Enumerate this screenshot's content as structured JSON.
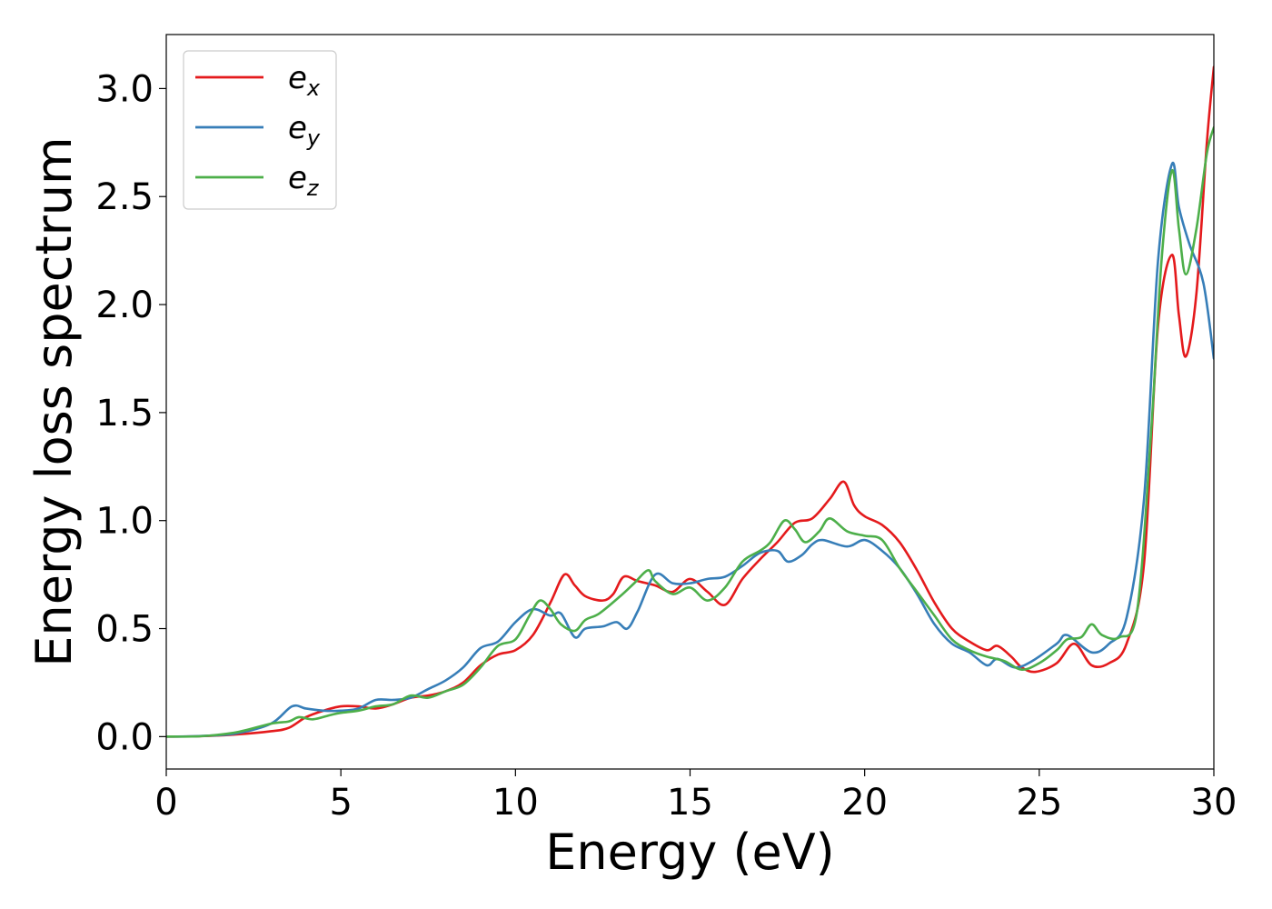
{
  "chart_data": {
    "type": "line",
    "title": "",
    "xlabel": "Energy (eV)",
    "ylabel": "Energy loss spectrum",
    "xlim": [
      0,
      30
    ],
    "ylim": [
      -0.15,
      3.25
    ],
    "xticks": [
      0,
      5,
      10,
      15,
      20,
      25,
      30
    ],
    "xtick_labels": [
      "0",
      "5",
      "10",
      "15",
      "20",
      "25",
      "30"
    ],
    "yticks": [
      0.0,
      0.5,
      1.0,
      1.5,
      2.0,
      2.5,
      3.0
    ],
    "ytick_labels": [
      "0.0",
      "0.5",
      "1.0",
      "1.5",
      "2.0",
      "2.5",
      "3.0"
    ],
    "grid": false,
    "legend_position": "top-left",
    "series": [
      {
        "name": "e_x",
        "label_base": "e",
        "label_sub": "x",
        "color": "#e41a1c",
        "points": [
          [
            0,
            0
          ],
          [
            1,
            0.002
          ],
          [
            2,
            0.01
          ],
          [
            3,
            0.025
          ],
          [
            3.5,
            0.04
          ],
          [
            4,
            0.09
          ],
          [
            4.5,
            0.12
          ],
          [
            5,
            0.14
          ],
          [
            5.5,
            0.14
          ],
          [
            6,
            0.13
          ],
          [
            6.5,
            0.15
          ],
          [
            7,
            0.18
          ],
          [
            7.5,
            0.19
          ],
          [
            8,
            0.21
          ],
          [
            8.5,
            0.25
          ],
          [
            9,
            0.33
          ],
          [
            9.5,
            0.38
          ],
          [
            10,
            0.4
          ],
          [
            10.5,
            0.47
          ],
          [
            11,
            0.62
          ],
          [
            11.4,
            0.75
          ],
          [
            11.7,
            0.7
          ],
          [
            12,
            0.65
          ],
          [
            12.5,
            0.63
          ],
          [
            12.8,
            0.66
          ],
          [
            13.1,
            0.74
          ],
          [
            13.5,
            0.72
          ],
          [
            14,
            0.7
          ],
          [
            14.5,
            0.67
          ],
          [
            15,
            0.73
          ],
          [
            15.5,
            0.67
          ],
          [
            16,
            0.61
          ],
          [
            16.5,
            0.73
          ],
          [
            17,
            0.82
          ],
          [
            17.5,
            0.9
          ],
          [
            18,
            0.99
          ],
          [
            18.5,
            1.01
          ],
          [
            19,
            1.1
          ],
          [
            19.4,
            1.18
          ],
          [
            19.7,
            1.07
          ],
          [
            20,
            1.02
          ],
          [
            20.5,
            0.98
          ],
          [
            21,
            0.9
          ],
          [
            21.5,
            0.77
          ],
          [
            22,
            0.62
          ],
          [
            22.5,
            0.5
          ],
          [
            23,
            0.44
          ],
          [
            23.5,
            0.4
          ],
          [
            23.8,
            0.42
          ],
          [
            24.2,
            0.37
          ],
          [
            24.5,
            0.32
          ],
          [
            24.9,
            0.3
          ],
          [
            25.5,
            0.34
          ],
          [
            26,
            0.43
          ],
          [
            26.5,
            0.33
          ],
          [
            27,
            0.34
          ],
          [
            27.5,
            0.43
          ],
          [
            28,
            0.8
          ],
          [
            28.4,
            1.9
          ],
          [
            28.8,
            2.23
          ],
          [
            29,
            1.95
          ],
          [
            29.2,
            1.76
          ],
          [
            29.5,
            2.05
          ],
          [
            29.8,
            2.75
          ],
          [
            30,
            3.1
          ]
        ]
      },
      {
        "name": "e_y",
        "label_base": "e",
        "label_sub": "y",
        "color": "#377eb8",
        "points": [
          [
            0,
            0
          ],
          [
            1,
            0.003
          ],
          [
            2,
            0.015
          ],
          [
            3,
            0.06
          ],
          [
            3.6,
            0.14
          ],
          [
            4,
            0.13
          ],
          [
            4.5,
            0.12
          ],
          [
            5,
            0.12
          ],
          [
            5.5,
            0.13
          ],
          [
            6,
            0.17
          ],
          [
            6.5,
            0.17
          ],
          [
            7,
            0.18
          ],
          [
            7.5,
            0.22
          ],
          [
            8,
            0.26
          ],
          [
            8.5,
            0.32
          ],
          [
            9,
            0.41
          ],
          [
            9.5,
            0.44
          ],
          [
            10,
            0.53
          ],
          [
            10.5,
            0.59
          ],
          [
            11,
            0.56
          ],
          [
            11.3,
            0.57
          ],
          [
            11.7,
            0.46
          ],
          [
            12,
            0.5
          ],
          [
            12.5,
            0.51
          ],
          [
            12.9,
            0.53
          ],
          [
            13.2,
            0.5
          ],
          [
            13.5,
            0.58
          ],
          [
            14,
            0.75
          ],
          [
            14.5,
            0.71
          ],
          [
            15,
            0.71
          ],
          [
            15.5,
            0.73
          ],
          [
            16,
            0.74
          ],
          [
            16.5,
            0.79
          ],
          [
            17,
            0.85
          ],
          [
            17.5,
            0.86
          ],
          [
            17.8,
            0.81
          ],
          [
            18.2,
            0.84
          ],
          [
            18.5,
            0.89
          ],
          [
            18.8,
            0.91
          ],
          [
            19.5,
            0.88
          ],
          [
            20,
            0.91
          ],
          [
            20.5,
            0.86
          ],
          [
            21,
            0.78
          ],
          [
            21.5,
            0.66
          ],
          [
            22,
            0.52
          ],
          [
            22.5,
            0.43
          ],
          [
            23,
            0.39
          ],
          [
            23.5,
            0.33
          ],
          [
            23.8,
            0.36
          ],
          [
            24.3,
            0.32
          ],
          [
            24.8,
            0.35
          ],
          [
            25.5,
            0.43
          ],
          [
            25.8,
            0.47
          ],
          [
            26.5,
            0.39
          ],
          [
            27,
            0.43
          ],
          [
            27.5,
            0.55
          ],
          [
            28,
            1.1
          ],
          [
            28.4,
            2.2
          ],
          [
            28.8,
            2.65
          ],
          [
            29,
            2.45
          ],
          [
            29.3,
            2.28
          ],
          [
            29.7,
            2.1
          ],
          [
            30,
            1.75
          ]
        ]
      },
      {
        "name": "e_z",
        "label_base": "e",
        "label_sub": "z",
        "color": "#4daf4a",
        "points": [
          [
            0,
            0
          ],
          [
            1,
            0.002
          ],
          [
            2,
            0.02
          ],
          [
            3,
            0.06
          ],
          [
            3.5,
            0.07
          ],
          [
            3.8,
            0.09
          ],
          [
            4.2,
            0.08
          ],
          [
            4.7,
            0.1
          ],
          [
            5,
            0.11
          ],
          [
            5.5,
            0.12
          ],
          [
            6,
            0.14
          ],
          [
            6.5,
            0.15
          ],
          [
            7,
            0.19
          ],
          [
            7.5,
            0.18
          ],
          [
            8,
            0.21
          ],
          [
            8.5,
            0.24
          ],
          [
            9,
            0.32
          ],
          [
            9.5,
            0.42
          ],
          [
            10,
            0.45
          ],
          [
            10.4,
            0.56
          ],
          [
            10.7,
            0.63
          ],
          [
            11,
            0.59
          ],
          [
            11.3,
            0.52
          ],
          [
            11.7,
            0.49
          ],
          [
            12,
            0.54
          ],
          [
            12.4,
            0.57
          ],
          [
            13,
            0.65
          ],
          [
            13.4,
            0.71
          ],
          [
            13.8,
            0.77
          ],
          [
            14,
            0.72
          ],
          [
            14.5,
            0.66
          ],
          [
            15,
            0.69
          ],
          [
            15.5,
            0.63
          ],
          [
            16,
            0.69
          ],
          [
            16.5,
            0.81
          ],
          [
            17,
            0.86
          ],
          [
            17.3,
            0.9
          ],
          [
            17.7,
            1.0
          ],
          [
            18,
            0.96
          ],
          [
            18.3,
            0.9
          ],
          [
            18.7,
            0.95
          ],
          [
            19,
            1.01
          ],
          [
            19.5,
            0.95
          ],
          [
            20,
            0.93
          ],
          [
            20.5,
            0.91
          ],
          [
            21,
            0.78
          ],
          [
            21.5,
            0.67
          ],
          [
            22,
            0.56
          ],
          [
            22.5,
            0.45
          ],
          [
            23,
            0.4
          ],
          [
            23.5,
            0.37
          ],
          [
            24,
            0.35
          ],
          [
            24.5,
            0.31
          ],
          [
            25,
            0.34
          ],
          [
            25.5,
            0.4
          ],
          [
            25.8,
            0.45
          ],
          [
            26.2,
            0.46
          ],
          [
            26.5,
            0.52
          ],
          [
            26.8,
            0.47
          ],
          [
            27.3,
            0.46
          ],
          [
            27.8,
            0.58
          ],
          [
            28.2,
            1.4
          ],
          [
            28.5,
            2.2
          ],
          [
            28.8,
            2.62
          ],
          [
            29,
            2.35
          ],
          [
            29.2,
            2.14
          ],
          [
            29.5,
            2.35
          ],
          [
            29.8,
            2.7
          ],
          [
            30,
            2.82
          ]
        ]
      }
    ]
  }
}
